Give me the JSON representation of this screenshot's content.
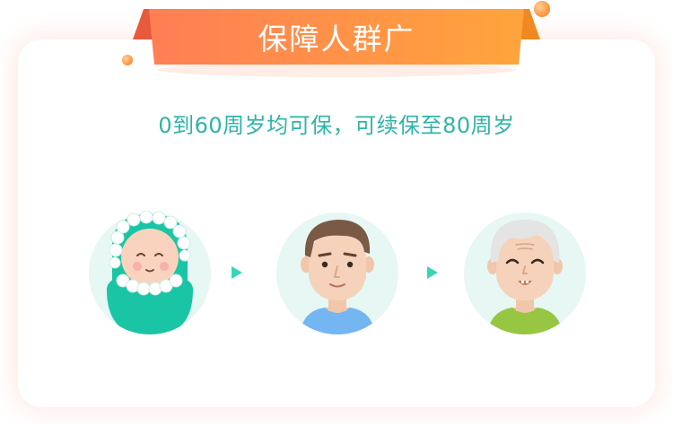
{
  "banner": {
    "title": "保障人群广"
  },
  "subtitle": "0到60周岁均可保，可续保至80周岁",
  "stages": [
    {
      "icon": "baby-avatar-icon"
    },
    {
      "icon": "adult-man-avatar-icon"
    },
    {
      "icon": "elderly-man-avatar-icon"
    }
  ],
  "colors": {
    "banner_left": "#ff7e55",
    "banner_right": "#ffa53c",
    "subtitle": "#2eb5a6",
    "avatar_bg": "#e6f7f4",
    "teal": "#19c5a5",
    "arrow": "#38d6b8"
  }
}
